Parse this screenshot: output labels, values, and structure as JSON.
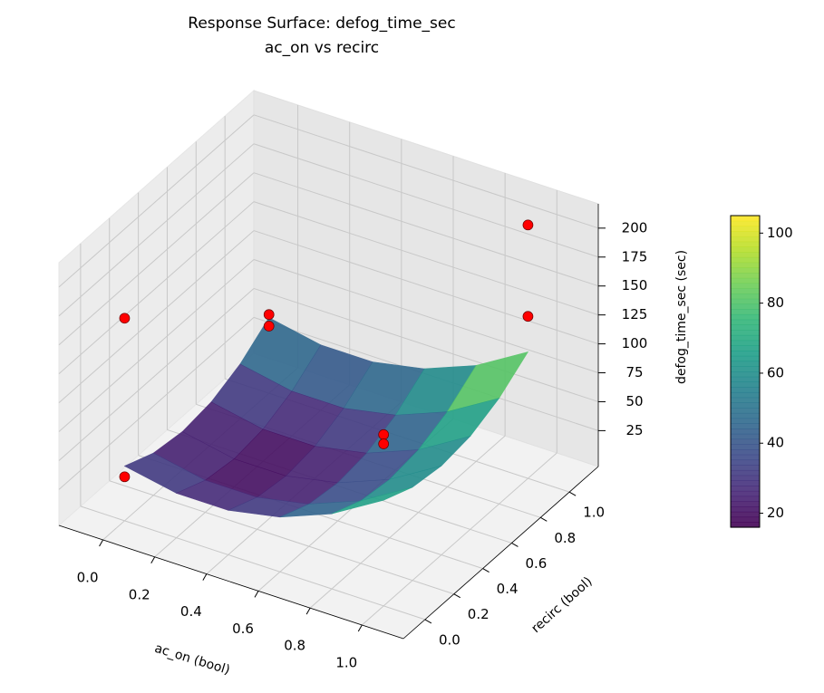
{
  "chart_data": {
    "type": "surface3d",
    "title": "Response Surface: defog_time_sec",
    "subtitle": "ac_on vs recirc",
    "x_label": "ac_on (bool)",
    "y_label": "recirc (bool)",
    "z_label": "defog_time_sec (sec)",
    "xlim": [
      -0.17,
      1.16
    ],
    "ylim": [
      -0.15,
      1.2
    ],
    "zlim": [
      -6,
      221
    ],
    "xticks": [
      {
        "value": 0,
        "label": "0.0"
      },
      0.2,
      0.4,
      0.6,
      0.8,
      {
        "value": 1,
        "label": "1.0"
      }
    ],
    "yticks": [
      {
        "value": 0,
        "label": "0.0"
      },
      0.2,
      0.4,
      0.6,
      0.8,
      {
        "value": 1,
        "label": "1.0"
      }
    ],
    "zticks": [
      25,
      50,
      75,
      100,
      125,
      150,
      175,
      200
    ],
    "grid": true,
    "colormap": "viridis",
    "clim": [
      16,
      105
    ],
    "cticks": [
      20,
      40,
      60,
      80,
      100
    ],
    "surface": {
      "x": [
        0,
        0.2,
        0.4,
        0.6,
        0.8,
        1
      ],
      "y": [
        0,
        0.2,
        0.4,
        0.6,
        0.8,
        1
      ],
      "z": [
        [
          41.3,
          30.5,
          26.9,
          30.5,
          41.3,
          59.3
        ],
        [
          32.5,
          21.7,
          18.1,
          21.7,
          32.5,
          50.5
        ],
        [
          32.5,
          21.7,
          18.1,
          21.7,
          32.5,
          50.5
        ],
        [
          41.3,
          30.5,
          26.9,
          30.5,
          41.3,
          59.3
        ],
        [
          58.9,
          48.1,
          44.5,
          48.1,
          58.9,
          76.9
        ],
        [
          85.3,
          74.5,
          70.9,
          74.5,
          85.3,
          103.3
        ]
      ]
    },
    "points": {
      "color": "#ff0000",
      "x": [
        0,
        0,
        1,
        1,
        0,
        0,
        1,
        1
      ],
      "y": [
        0,
        0,
        0,
        0,
        1,
        1,
        1,
        1
      ],
      "z": [
        169,
        32,
        142,
        134,
        62,
        52,
        213,
        134
      ]
    }
  }
}
